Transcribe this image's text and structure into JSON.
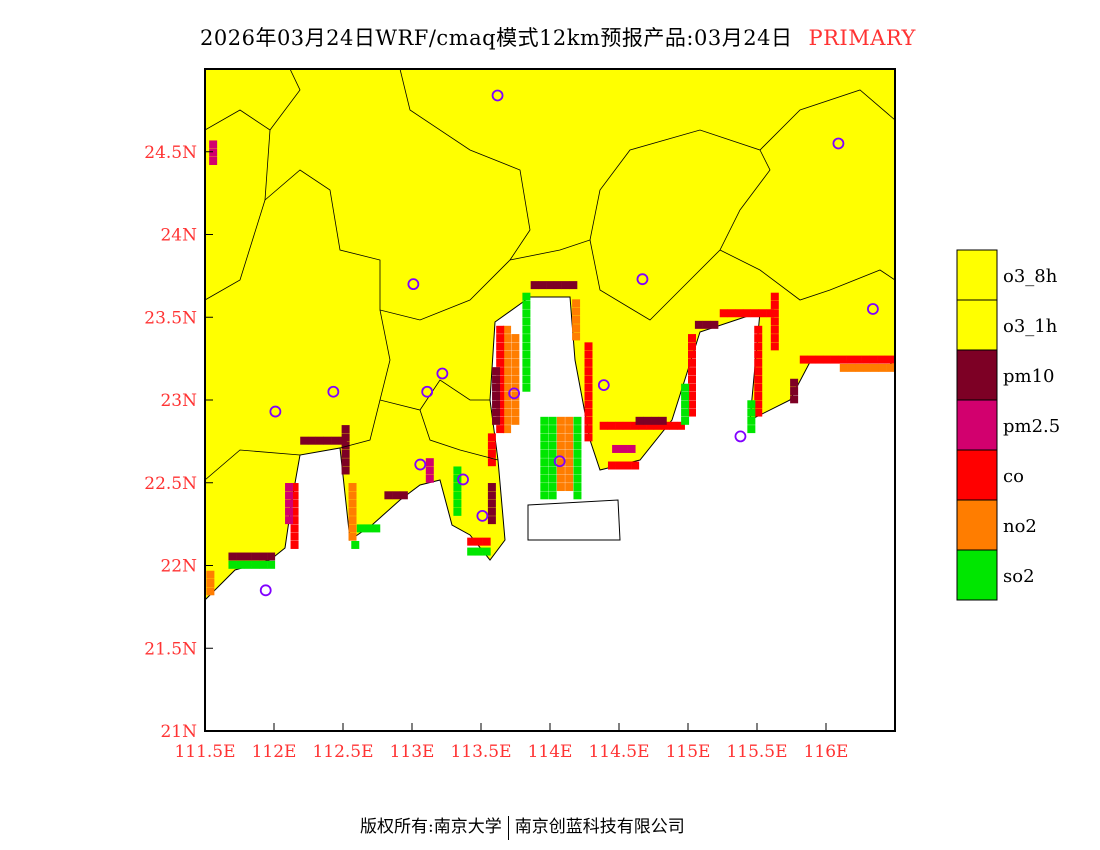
{
  "title": {
    "text": "2026年03月24日WRF/cmaq模式12km预报产品:03月24日",
    "highlight": "PRIMARY"
  },
  "axes": {
    "lon_range": [
      111.5,
      116.5
    ],
    "lat_range": [
      21.0,
      25.0
    ],
    "lon_ticks": [
      {
        "v": 111.5,
        "label": "111.5E"
      },
      {
        "v": 112,
        "label": "112E"
      },
      {
        "v": 112.5,
        "label": "112.5E"
      },
      {
        "v": 113,
        "label": "113E"
      },
      {
        "v": 113.5,
        "label": "113.5E"
      },
      {
        "v": 114,
        "label": "114E"
      },
      {
        "v": 114.5,
        "label": "114.5E"
      },
      {
        "v": 115,
        "label": "115E"
      },
      {
        "v": 115.5,
        "label": "115.5E"
      },
      {
        "v": 116,
        "label": "116E"
      }
    ],
    "lat_ticks": [
      {
        "v": 21,
        "label": "21N"
      },
      {
        "v": 21.5,
        "label": "21.5N"
      },
      {
        "v": 22,
        "label": "22N"
      },
      {
        "v": 22.5,
        "label": "22.5N"
      },
      {
        "v": 23,
        "label": "23N"
      },
      {
        "v": 23.5,
        "label": "23.5N"
      },
      {
        "v": 24,
        "label": "24N"
      },
      {
        "v": 24.5,
        "label": "24.5N"
      }
    ]
  },
  "legend": [
    {
      "label": "o3_8h",
      "color": "#ffff00"
    },
    {
      "label": "o3_1h",
      "color": "#ffff00"
    },
    {
      "label": "pm10",
      "color": "#7d0025"
    },
    {
      "label": "pm2.5",
      "color": "#d2006e"
    },
    {
      "label": "co",
      "color": "#ff0000"
    },
    {
      "label": "no2",
      "color": "#ff7d00"
    },
    {
      "label": "so2",
      "color": "#00e600"
    }
  ],
  "cities": [
    [
      113.62,
      24.84
    ],
    [
      116.09,
      24.55
    ],
    [
      113.01,
      23.7
    ],
    [
      114.67,
      23.73
    ],
    [
      116.34,
      23.55
    ],
    [
      112.43,
      23.05
    ],
    [
      113.11,
      23.05
    ],
    [
      113.22,
      23.16
    ],
    [
      113.74,
      23.04
    ],
    [
      114.39,
      23.09
    ],
    [
      112.01,
      22.93
    ],
    [
      115.38,
      22.78
    ],
    [
      113.06,
      22.61
    ],
    [
      114.07,
      22.63
    ],
    [
      113.37,
      22.52
    ],
    [
      113.51,
      22.3
    ],
    [
      111.94,
      21.85
    ]
  ],
  "cell_runs_h": [
    [
      111.67,
      111.97,
      22.03,
      "pm10"
    ],
    [
      111.67,
      111.97,
      21.98,
      "so2"
    ],
    [
      112.19,
      112.51,
      22.73,
      "pm10"
    ],
    [
      113.86,
      114.14,
      23.67,
      "pm10"
    ],
    [
      114.36,
      114.94,
      22.82,
      "co"
    ],
    [
      114.62,
      114.8,
      22.85,
      "pm10"
    ],
    [
      115.05,
      115.2,
      23.43,
      "pm10"
    ],
    [
      115.23,
      115.58,
      23.5,
      "co"
    ],
    [
      115.81,
      116.5,
      23.22,
      "co"
    ],
    [
      116.1,
      116.5,
      23.17,
      "no2"
    ],
    [
      113.4,
      113.55,
      22.12,
      "co"
    ],
    [
      113.4,
      113.52,
      22.06,
      "so2"
    ],
    [
      114.45,
      114.6,
      22.68,
      "pm2.5"
    ],
    [
      114.42,
      114.62,
      22.58,
      "co"
    ],
    [
      112.6,
      112.75,
      22.2,
      "so2"
    ],
    [
      112.8,
      112.95,
      22.4,
      "pm10"
    ]
  ],
  "cell_runs_v": [
    [
      112.12,
      22.1,
      22.45,
      "co"
    ],
    [
      112.08,
      22.25,
      22.48,
      "pm2.5"
    ],
    [
      112.54,
      22.15,
      22.45,
      "no2"
    ],
    [
      112.56,
      22.1,
      22.14,
      "so2"
    ],
    [
      112.49,
      22.55,
      22.8,
      "pm10"
    ],
    [
      113.66,
      22.8,
      23.4,
      "no2"
    ],
    [
      113.72,
      22.85,
      23.35,
      "no2"
    ],
    [
      113.61,
      22.8,
      23.4,
      "co"
    ],
    [
      113.58,
      22.85,
      23.15,
      "pm10"
    ],
    [
      113.8,
      23.05,
      23.6,
      "so2"
    ],
    [
      114.16,
      23.36,
      23.6,
      "no2"
    ],
    [
      114.25,
      22.75,
      23.3,
      "co"
    ],
    [
      113.93,
      22.4,
      22.87,
      "so2"
    ],
    [
      113.99,
      22.4,
      22.87,
      "so2"
    ],
    [
      114.05,
      22.45,
      22.87,
      "no2"
    ],
    [
      114.11,
      22.45,
      22.87,
      "no2"
    ],
    [
      114.17,
      22.4,
      22.87,
      "so2"
    ],
    [
      115.0,
      22.9,
      23.37,
      "co"
    ],
    [
      114.95,
      22.85,
      23.05,
      "so2"
    ],
    [
      115.48,
      22.9,
      23.4,
      "co"
    ],
    [
      115.43,
      22.8,
      22.95,
      "so2"
    ],
    [
      115.6,
      23.3,
      23.6,
      "co"
    ],
    [
      115.74,
      22.98,
      23.1,
      "pm10"
    ],
    [
      111.53,
      24.42,
      24.52,
      "pm2.5"
    ],
    [
      111.51,
      21.82,
      21.92,
      "no2"
    ],
    [
      113.55,
      22.6,
      22.75,
      "co"
    ],
    [
      113.55,
      22.25,
      22.45,
      "pm10"
    ],
    [
      113.3,
      22.3,
      22.55,
      "so2"
    ],
    [
      113.1,
      22.5,
      22.62,
      "pm2.5"
    ]
  ],
  "footer": {
    "left": "版权所有:南京大学",
    "right": "南京创蓝科技有限公司"
  }
}
